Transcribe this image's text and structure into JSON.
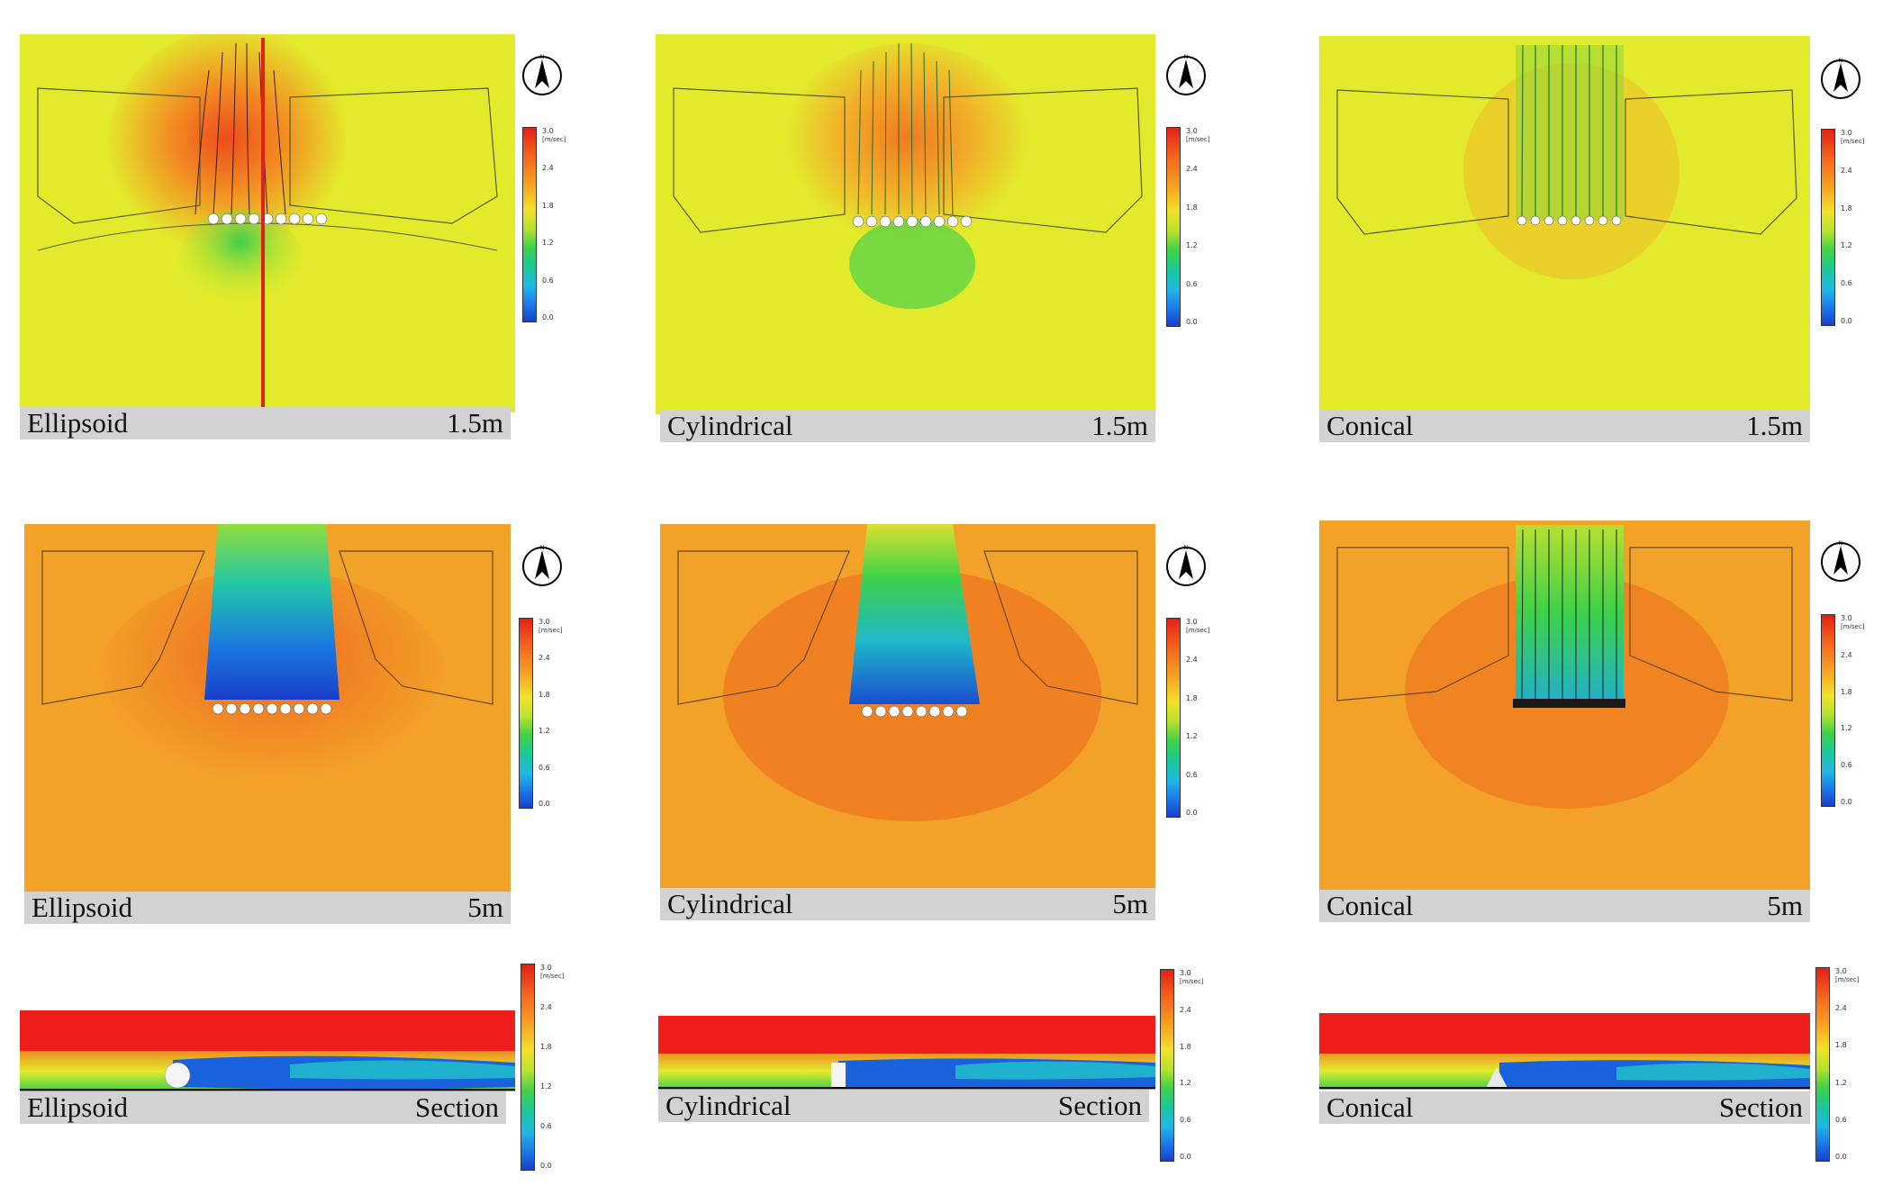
{
  "legend": {
    "ticks": [
      "3.0",
      "2.4",
      "1.8",
      "1.2",
      "0.6",
      "0.0"
    ],
    "unit": "[m/sec]"
  },
  "compass_label": "N",
  "panels": [
    {
      "shape": "Ellipsoid",
      "level": "1.5m"
    },
    {
      "shape": "Cylindrical",
      "level": "1.5m"
    },
    {
      "shape": "Conical",
      "level": "1.5m"
    },
    {
      "shape": "Ellipsoid",
      "level": "5m"
    },
    {
      "shape": "Cylindrical",
      "level": "5m"
    },
    {
      "shape": "Conical",
      "level": "5m"
    },
    {
      "shape": "Ellipsoid",
      "level": "Section"
    },
    {
      "shape": "Cylindrical",
      "level": "Section"
    },
    {
      "shape": "Conical",
      "level": "Section"
    }
  ],
  "colors": {
    "plan_1_5m_background": "#e3ea2c",
    "plan_5m_background": "#f2a229",
    "section_top": "#ee1c1a",
    "wake_low": "#1a55d8",
    "caption_bar": "#d2d2d2",
    "section_marker": "#e0201a"
  }
}
